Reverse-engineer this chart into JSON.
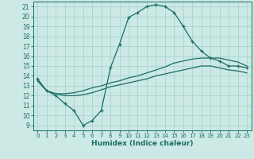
{
  "xlabel": "Humidex (Indice chaleur)",
  "bg_color": "#cce9e5",
  "line_color": "#1a6e64",
  "grid_color": "#a8d5cf",
  "xlim": [
    -0.5,
    23.5
  ],
  "ylim": [
    8.5,
    21.5
  ],
  "xticks": [
    0,
    1,
    2,
    3,
    4,
    5,
    6,
    7,
    8,
    9,
    10,
    11,
    12,
    13,
    14,
    15,
    16,
    17,
    18,
    19,
    20,
    21,
    22,
    23
  ],
  "yticks": [
    9,
    10,
    11,
    12,
    13,
    14,
    15,
    16,
    17,
    18,
    19,
    20,
    21
  ],
  "line1_x": [
    0,
    1,
    2,
    3,
    4,
    5,
    6,
    7,
    8,
    9,
    10,
    11,
    12,
    13,
    14,
    15,
    16,
    17,
    18,
    19,
    20,
    21,
    22,
    23
  ],
  "line1_y": [
    13.7,
    12.5,
    12.0,
    11.2,
    10.5,
    9.0,
    9.5,
    10.5,
    14.8,
    17.2,
    19.9,
    20.4,
    21.0,
    21.2,
    21.0,
    20.4,
    19.0,
    17.5,
    16.5,
    15.8,
    15.5,
    15.0,
    15.0,
    14.8
  ],
  "line2_x": [
    0,
    1,
    2,
    3,
    4,
    5,
    6,
    7,
    8,
    9,
    10,
    11,
    12,
    13,
    14,
    15,
    16,
    17,
    18,
    19,
    20,
    21,
    22,
    23
  ],
  "line2_y": [
    13.5,
    12.5,
    12.2,
    12.2,
    12.3,
    12.5,
    12.8,
    13.0,
    13.3,
    13.5,
    13.8,
    14.0,
    14.3,
    14.6,
    14.9,
    15.3,
    15.5,
    15.7,
    15.8,
    15.8,
    15.8,
    15.6,
    15.4,
    15.0
  ],
  "line3_x": [
    0,
    1,
    2,
    3,
    4,
    5,
    6,
    7,
    8,
    9,
    10,
    11,
    12,
    13,
    14,
    15,
    16,
    17,
    18,
    19,
    20,
    21,
    22,
    23
  ],
  "line3_y": [
    13.5,
    12.5,
    12.2,
    12.0,
    12.0,
    12.1,
    12.3,
    12.6,
    12.9,
    13.1,
    13.3,
    13.5,
    13.7,
    14.0,
    14.2,
    14.4,
    14.6,
    14.8,
    15.0,
    15.0,
    14.8,
    14.6,
    14.5,
    14.3
  ]
}
